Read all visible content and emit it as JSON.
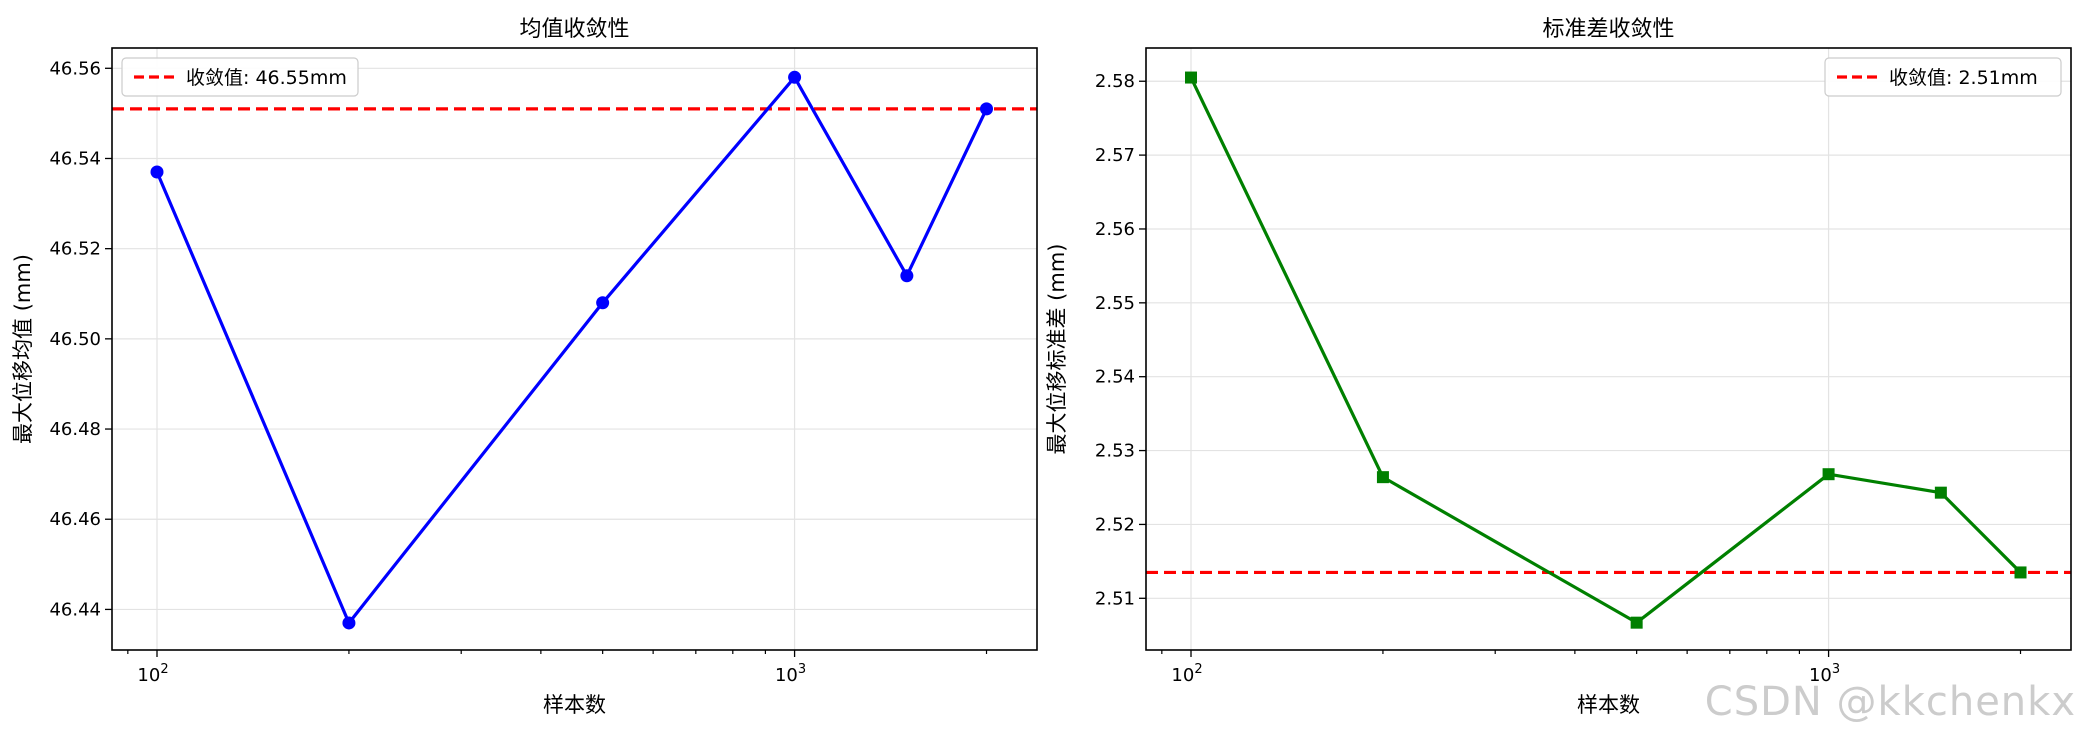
{
  "watermark": "CSDN @kkchenkx",
  "chart_data": [
    {
      "type": "line",
      "title": "均值收敛性",
      "xlabel": "样本数",
      "ylabel": "最大位移均值 (mm)",
      "xscale": "log",
      "xlim": [
        85,
        2400
      ],
      "ylim": [
        46.431,
        46.5645
      ],
      "yticks": [
        46.44,
        46.46,
        46.48,
        46.5,
        46.52,
        46.54,
        46.56
      ],
      "ytick_labels": [
        "46.44",
        "46.46",
        "46.48",
        "46.50",
        "46.52",
        "46.54",
        "46.56"
      ],
      "xticks": [
        100,
        1000
      ],
      "xtick_labels": [
        [
          "10",
          "2"
        ],
        [
          "10",
          "3"
        ]
      ],
      "grid": true,
      "legend_position": "top-left",
      "series": [
        {
          "name": "",
          "color": "#0000ff",
          "marker": "circle",
          "x": [
            100,
            200,
            500,
            1000,
            1500,
            2000
          ],
          "y": [
            46.537,
            46.437,
            46.508,
            46.558,
            46.514,
            46.551
          ]
        }
      ],
      "reference_line": {
        "y": 46.551,
        "label": "收敛值: 46.55mm",
        "color": "#ff0000",
        "style": "dashed"
      }
    },
    {
      "type": "line",
      "title": "标准差收敛性",
      "xlabel": "样本数",
      "ylabel": "最大位移标准差 (mm)",
      "xscale": "log",
      "xlim": [
        85,
        2400
      ],
      "ylim": [
        2.503,
        2.5845
      ],
      "yticks": [
        2.51,
        2.52,
        2.53,
        2.54,
        2.55,
        2.56,
        2.57,
        2.58
      ],
      "ytick_labels": [
        "2.51",
        "2.52",
        "2.53",
        "2.54",
        "2.55",
        "2.56",
        "2.57",
        "2.58"
      ],
      "xticks": [
        100,
        1000
      ],
      "xtick_labels": [
        [
          "10",
          "2"
        ],
        [
          "10",
          "3"
        ]
      ],
      "grid": true,
      "legend_position": "top-right",
      "series": [
        {
          "name": "",
          "color": "#008000",
          "marker": "square",
          "x": [
            100,
            200,
            500,
            1000,
            1500,
            2000
          ],
          "y": [
            2.5805,
            2.5264,
            2.5067,
            2.5268,
            2.5243,
            2.5135
          ]
        }
      ],
      "reference_line": {
        "y": 2.5135,
        "label": "收敛值: 2.51mm",
        "color": "#ff0000",
        "style": "dashed"
      }
    }
  ]
}
